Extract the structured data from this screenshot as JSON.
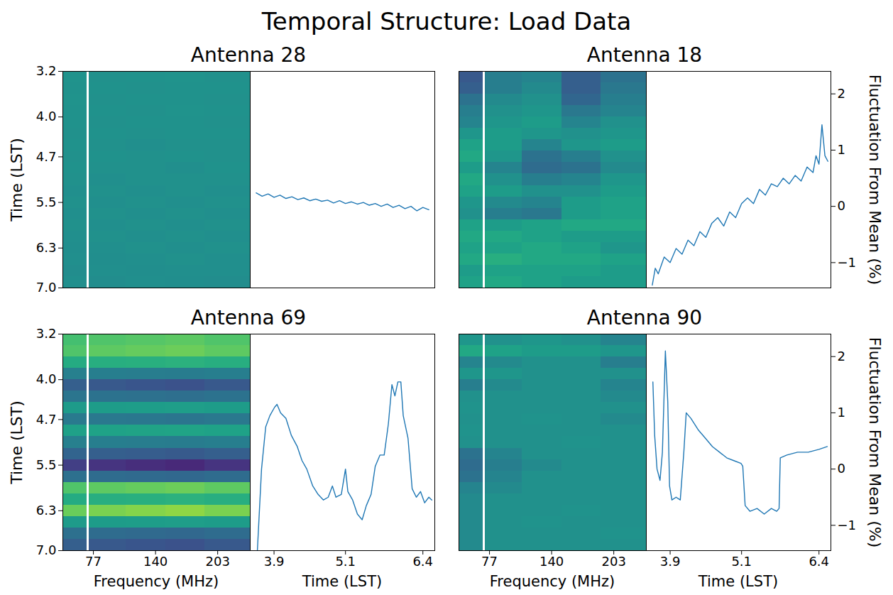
{
  "title": "Temporal Structure: Load Data",
  "chart_data": [
    {
      "type": "heatmap",
      "title": "Antenna 28",
      "y_label": "Time (LST)",
      "x_edges": [
        46,
        70.5,
        72.5,
        110,
        150,
        190,
        236
      ],
      "y_edges": [
        3.2,
        3.4,
        3.6,
        3.8,
        4.0,
        4.2,
        4.4,
        4.6,
        4.8,
        5.0,
        5.2,
        5.4,
        5.6,
        5.8,
        6.0,
        6.2,
        6.4,
        6.6,
        6.8,
        7.0
      ],
      "cells": [
        [
          0.05,
          null,
          0.0,
          0.02,
          0.05,
          0.0
        ],
        [
          0.03,
          null,
          0.02,
          0.0,
          0.04,
          0.02
        ],
        [
          0.05,
          null,
          0.0,
          0.03,
          0.02,
          0.0
        ],
        [
          0.02,
          null,
          0.03,
          0.0,
          0.05,
          0.02
        ],
        [
          0.04,
          null,
          0.0,
          0.02,
          0.03,
          0.0
        ],
        [
          0.0,
          null,
          0.02,
          0.0,
          0.02,
          0.03
        ],
        [
          0.03,
          null,
          0.0,
          -0.02,
          0.0,
          0.0
        ],
        [
          0.0,
          null,
          0.02,
          0.0,
          0.02,
          0.0
        ],
        [
          0.02,
          null,
          0.0,
          0.0,
          -0.02,
          0.02
        ],
        [
          0.0,
          null,
          -0.02,
          0.0,
          0.0,
          0.0
        ],
        [
          -0.02,
          null,
          0.0,
          -0.02,
          0.0,
          -0.02
        ],
        [
          0.0,
          null,
          -0.02,
          0.0,
          -0.03,
          0.0
        ],
        [
          -0.03,
          null,
          0.0,
          -0.02,
          0.0,
          -0.02
        ],
        [
          0.0,
          null,
          -0.03,
          0.0,
          -0.02,
          0.0
        ],
        [
          -0.02,
          null,
          0.0,
          -0.03,
          0.0,
          -0.03
        ],
        [
          -0.04,
          null,
          -0.02,
          0.0,
          -0.03,
          0.0
        ],
        [
          -0.02,
          null,
          -0.04,
          -0.02,
          0.0,
          -0.03
        ],
        [
          -0.05,
          null,
          -0.02,
          -0.04,
          -0.03,
          -0.02
        ],
        [
          -0.03,
          null,
          -0.05,
          -0.02,
          -0.04,
          -0.05
        ]
      ],
      "clim": [
        -2,
        2
      ],
      "xlim": [
        46,
        236
      ],
      "ylim": [
        7.0,
        3.2
      ],
      "yticks": [
        3.2,
        {
          "value": 4,
          "label": "4.0"
        },
        4.7,
        5.5,
        6.3,
        {
          "value": 7,
          "label": "7.0"
        }
      ],
      "tick_labels": "y"
    },
    {
      "type": "line",
      "color": "#1f77b4",
      "x": [
        3.6,
        3.7,
        3.8,
        3.9,
        4.0,
        4.1,
        4.2,
        4.3,
        4.4,
        4.5,
        4.6,
        4.7,
        4.8,
        4.9,
        5.0,
        5.1,
        5.2,
        5.3,
        5.4,
        5.5,
        5.6,
        5.7,
        5.8,
        5.9,
        6.0,
        6.1,
        6.2,
        6.3,
        6.4,
        6.5
      ],
      "values": [
        0.24,
        0.18,
        0.22,
        0.16,
        0.2,
        0.14,
        0.17,
        0.12,
        0.15,
        0.1,
        0.13,
        0.09,
        0.11,
        0.06,
        0.1,
        0.05,
        0.08,
        0.04,
        0.07,
        0.02,
        0.05,
        0.0,
        0.04,
        -0.02,
        0.02,
        -0.04,
        0.0,
        -0.08,
        -0.02,
        -0.06
      ],
      "xlim": [
        3.5,
        6.6
      ],
      "ylim": [
        -1.45,
        2.4
      ],
      "tick_labels": false
    },
    {
      "type": "heatmap",
      "title": "Antenna 18",
      "x_edges": [
        46,
        70.5,
        72.5,
        110,
        150,
        190,
        236
      ],
      "y_edges": [
        3.2,
        3.4,
        3.6,
        3.8,
        4.0,
        4.2,
        4.4,
        4.6,
        4.8,
        5.0,
        5.2,
        5.4,
        5.6,
        5.8,
        6.0,
        6.2,
        6.4,
        6.6,
        6.8,
        7.0
      ],
      "cells": [
        [
          -0.9,
          null,
          -0.3,
          -0.2,
          -0.8,
          -0.5
        ],
        [
          -0.8,
          null,
          -0.3,
          -0.1,
          -0.8,
          -0.4
        ],
        [
          -0.5,
          null,
          -0.1,
          0.0,
          -0.7,
          -0.3
        ],
        [
          -0.3,
          null,
          0.0,
          0.1,
          -0.4,
          -0.2
        ],
        [
          -0.2,
          null,
          0.1,
          0.2,
          -0.2,
          0.0
        ],
        [
          0.1,
          null,
          0.2,
          0.1,
          0.0,
          0.1
        ],
        [
          0.3,
          null,
          0.2,
          -0.2,
          0.1,
          0.2
        ],
        [
          0.4,
          null,
          0.1,
          -0.5,
          -0.3,
          0.0
        ],
        [
          0.2,
          null,
          -0.2,
          -0.6,
          -0.5,
          -0.1
        ],
        [
          0.4,
          null,
          0.0,
          -0.3,
          -0.2,
          0.1
        ],
        [
          0.3,
          null,
          0.2,
          0.0,
          0.0,
          0.2
        ],
        [
          0.1,
          null,
          -0.1,
          -0.2,
          0.2,
          0.3
        ],
        [
          0.0,
          null,
          -0.3,
          -0.4,
          0.2,
          0.3
        ],
        [
          0.3,
          null,
          0.2,
          0.3,
          0.4,
          0.4
        ],
        [
          0.4,
          null,
          0.4,
          0.3,
          0.2,
          0.2
        ],
        [
          0.3,
          null,
          0.3,
          0.4,
          0.3,
          0.1
        ],
        [
          0.4,
          null,
          0.5,
          0.4,
          0.4,
          0.3
        ],
        [
          0.2,
          null,
          0.3,
          0.3,
          0.3,
          0.2
        ],
        [
          0.3,
          null,
          0.4,
          0.3,
          0.2,
          0.2
        ]
      ],
      "clim": [
        -2,
        2
      ],
      "xlim": [
        46,
        236
      ],
      "ylim": [
        7.0,
        3.2
      ],
      "tick_labels": false
    },
    {
      "type": "line",
      "color": "#1f77b4",
      "y_label": "Fluctuation From Mean (%)",
      "x": [
        3.6,
        3.65,
        3.7,
        3.8,
        3.9,
        4.0,
        4.1,
        4.2,
        4.3,
        4.4,
        4.5,
        4.6,
        4.7,
        4.8,
        4.9,
        5.0,
        5.1,
        5.2,
        5.3,
        5.4,
        5.5,
        5.6,
        5.7,
        5.8,
        5.9,
        6.0,
        6.1,
        6.2,
        6.3,
        6.35,
        6.4,
        6.45,
        6.5,
        6.55
      ],
      "values": [
        -1.4,
        -1.1,
        -1.2,
        -0.9,
        -1.0,
        -0.75,
        -0.85,
        -0.6,
        -0.7,
        -0.45,
        -0.55,
        -0.3,
        -0.2,
        -0.35,
        -0.1,
        -0.2,
        0.05,
        0.15,
        0.05,
        0.3,
        0.2,
        0.4,
        0.35,
        0.5,
        0.4,
        0.55,
        0.45,
        0.7,
        0.6,
        0.9,
        0.75,
        1.45,
        0.9,
        0.8
      ],
      "xlim": [
        3.5,
        6.6
      ],
      "ylim": [
        -1.45,
        2.4
      ],
      "yticks": [
        {
          "value": -1,
          "label": "−1"
        },
        0,
        1,
        2
      ],
      "tick_labels": "y"
    },
    {
      "type": "heatmap",
      "title": "Antenna 69",
      "y_label": "Time (LST)",
      "x_label": "Frequency (MHz)",
      "x_edges": [
        46,
        70.5,
        72.5,
        110,
        150,
        190,
        236
      ],
      "y_edges": [
        3.2,
        3.4,
        3.6,
        3.8,
        4.0,
        4.2,
        4.4,
        4.6,
        4.8,
        5.0,
        5.2,
        5.4,
        5.6,
        5.8,
        6.0,
        6.2,
        6.4,
        6.6,
        6.8,
        7.0
      ],
      "cells": [
        [
          0.81,
          null,
          0.9,
          0.95,
          0.99,
          0.9
        ],
        [
          0.9,
          null,
          1.0,
          1.05,
          1.1,
          1.0
        ],
        [
          0.45,
          null,
          0.5,
          0.53,
          0.55,
          0.5
        ],
        [
          -0.27,
          null,
          -0.3,
          -0.32,
          -0.33,
          -0.3
        ],
        [
          -0.81,
          null,
          -0.9,
          -0.95,
          -0.99,
          -0.9
        ],
        [
          -0.45,
          null,
          -0.5,
          -0.53,
          -0.55,
          -0.5
        ],
        [
          0.18,
          null,
          0.2,
          0.21,
          0.22,
          0.2
        ],
        [
          -0.36,
          null,
          -0.4,
          -0.42,
          -0.44,
          -0.4
        ],
        [
          0.27,
          null,
          0.3,
          0.32,
          0.33,
          0.3
        ],
        [
          -0.27,
          null,
          -0.3,
          -0.32,
          -0.33,
          -0.3
        ],
        [
          -0.72,
          null,
          -0.8,
          -0.84,
          -0.88,
          -0.8
        ],
        [
          -1.26,
          null,
          -1.4,
          -1.47,
          -1.54,
          -1.4
        ],
        [
          -0.54,
          null,
          -0.6,
          -0.63,
          -0.66,
          -0.6
        ],
        [
          0.9,
          null,
          1.0,
          1.05,
          1.1,
          1.0
        ],
        [
          0.45,
          null,
          0.5,
          0.53,
          0.55,
          0.5
        ],
        [
          1.08,
          null,
          1.2,
          1.26,
          1.32,
          1.2
        ],
        [
          0.18,
          null,
          0.2,
          0.21,
          0.22,
          0.2
        ],
        [
          -0.54,
          null,
          -0.6,
          -0.63,
          -0.66,
          -0.6
        ],
        [
          -0.81,
          null,
          -0.9,
          -0.95,
          -0.99,
          -0.9
        ]
      ],
      "clim": [
        -2,
        2
      ],
      "xlim": [
        46,
        236
      ],
      "ylim": [
        7.0,
        3.2
      ],
      "xticks": [
        77,
        140,
        203
      ],
      "yticks": [
        3.2,
        {
          "value": 4,
          "label": "4.0"
        },
        4.7,
        5.5,
        6.3,
        {
          "value": 7,
          "label": "7.0"
        }
      ]
    },
    {
      "type": "line",
      "color": "#1f77b4",
      "x_label": "Time (LST)",
      "x": [
        3.62,
        3.69,
        3.76,
        3.83,
        3.91,
        3.95,
        4.01,
        4.1,
        4.19,
        4.29,
        4.37,
        4.45,
        4.55,
        4.64,
        4.73,
        4.81,
        4.88,
        4.94,
        5.03,
        5.1,
        5.14,
        5.22,
        5.3,
        5.38,
        5.45,
        5.53,
        5.6,
        5.68,
        5.75,
        5.82,
        5.88,
        5.93,
        5.98,
        6.03,
        6.07,
        6.15,
        6.22,
        6.29,
        6.36,
        6.43,
        6.5,
        6.55
      ],
      "values": [
        -1.45,
        0.0,
        0.75,
        0.95,
        1.1,
        1.15,
        1.0,
        0.9,
        0.6,
        0.4,
        0.15,
        0.0,
        -0.3,
        -0.45,
        -0.55,
        -0.5,
        -0.3,
        -0.5,
        -0.45,
        0.0,
        -0.4,
        -0.55,
        -0.8,
        -0.9,
        -0.65,
        -0.45,
        0.05,
        0.25,
        0.25,
        0.8,
        1.5,
        1.3,
        1.55,
        1.55,
        0.95,
        0.55,
        -0.35,
        -0.5,
        -0.4,
        -0.6,
        -0.5,
        -0.55
      ],
      "xlim": [
        3.5,
        6.6
      ],
      "ylim": [
        -1.45,
        2.4
      ],
      "xticks": [
        3.9,
        5.1,
        6.4
      ],
      "tick_labels": "x"
    },
    {
      "type": "heatmap",
      "title": "Antenna 90",
      "x_label": "Frequency (MHz)",
      "x_edges": [
        46,
        70.5,
        72.5,
        110,
        150,
        190,
        236
      ],
      "y_edges": [
        3.2,
        3.4,
        3.6,
        3.8,
        4.0,
        4.2,
        4.4,
        4.6,
        4.8,
        5.0,
        5.2,
        5.4,
        5.6,
        5.8,
        6.0,
        6.2,
        6.4,
        6.6,
        6.8,
        7.0
      ],
      "cells": [
        [
          0.1,
          null,
          0.0,
          0.1,
          0.0,
          -0.2
        ],
        [
          0.4,
          null,
          0.3,
          0.2,
          0.2,
          0.1
        ],
        [
          -0.2,
          null,
          -0.1,
          0.0,
          0.0,
          -0.3
        ],
        [
          0.1,
          null,
          0.1,
          0.0,
          0.0,
          0.0
        ],
        [
          -0.3,
          null,
          -0.1,
          0.0,
          0.0,
          -0.2
        ],
        [
          0.0,
          null,
          0.0,
          0.0,
          0.0,
          -0.1
        ],
        [
          0.05,
          null,
          0.0,
          0.0,
          0.0,
          0.0
        ],
        [
          0.0,
          null,
          0.0,
          0.05,
          0.0,
          -0.1
        ],
        [
          0.05,
          null,
          0.0,
          0.0,
          0.0,
          0.0
        ],
        [
          0.0,
          null,
          0.0,
          0.0,
          0.05,
          0.0
        ],
        [
          -0.5,
          null,
          -0.2,
          0.0,
          0.0,
          0.0
        ],
        [
          -0.6,
          null,
          -0.3,
          -0.1,
          0.0,
          0.0
        ],
        [
          -0.5,
          null,
          -0.2,
          0.0,
          0.0,
          0.0
        ],
        [
          -0.2,
          null,
          -0.1,
          0.0,
          0.0,
          0.0
        ],
        [
          -0.1,
          null,
          0.0,
          0.0,
          0.0,
          0.0
        ],
        [
          -0.1,
          null,
          0.0,
          0.0,
          0.05,
          0.0
        ],
        [
          -0.1,
          null,
          0.0,
          0.05,
          0.0,
          0.0
        ],
        [
          -0.1,
          null,
          0.0,
          0.0,
          0.0,
          0.05
        ],
        [
          -0.1,
          null,
          0.0,
          0.0,
          0.0,
          0.0
        ]
      ],
      "clim": [
        -2,
        2
      ],
      "xlim": [
        46,
        236
      ],
      "ylim": [
        7.0,
        3.2
      ],
      "xticks": [
        77,
        140,
        203
      ],
      "tick_labels": "x"
    },
    {
      "type": "line",
      "color": "#1f77b4",
      "x_label": "Time (LST)",
      "y_label": "Fluctuation From Mean (%)",
      "x": [
        3.61,
        3.64,
        3.68,
        3.73,
        3.77,
        3.82,
        3.86,
        3.89,
        3.93,
        4.0,
        4.07,
        4.13,
        4.17,
        4.25,
        4.37,
        4.49,
        4.61,
        4.73,
        4.85,
        4.97,
        5.09,
        5.12,
        5.16,
        5.24,
        5.36,
        5.48,
        5.6,
        5.69,
        5.73,
        5.75,
        5.86,
        6.04,
        6.22,
        6.4,
        6.54
      ],
      "values": [
        1.55,
        0.6,
        0.0,
        -0.2,
        0.3,
        2.1,
        1.2,
        -0.3,
        -0.55,
        -0.5,
        -0.55,
        0.3,
        1.0,
        0.9,
        0.7,
        0.55,
        0.4,
        0.3,
        0.2,
        0.15,
        0.1,
        0.05,
        -0.65,
        -0.75,
        -0.7,
        -0.8,
        -0.7,
        -0.75,
        -0.7,
        0.2,
        0.25,
        0.3,
        0.3,
        0.35,
        0.4
      ],
      "xlim": [
        3.5,
        6.6
      ],
      "ylim": [
        -1.45,
        2.4
      ],
      "xticks": [
        3.9,
        5.1,
        6.4
      ],
      "yticks": [
        {
          "value": -1,
          "label": "−1"
        },
        0,
        1,
        2
      ]
    }
  ]
}
